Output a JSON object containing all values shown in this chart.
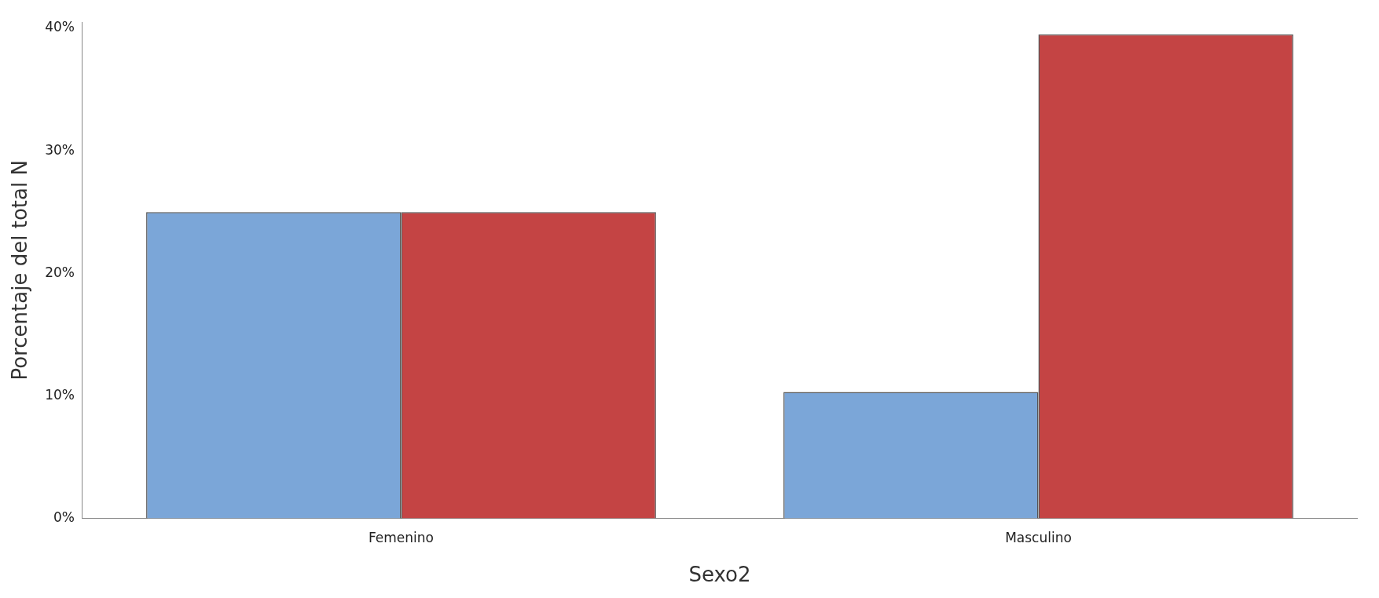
{
  "chart_data": {
    "type": "bar",
    "xlabel": "Sexo2",
    "ylabel": "Porcentaje del total N",
    "categories": [
      "Femenino",
      "Masculino"
    ],
    "series": [
      {
        "color": "#7ba6d8",
        "values": [
          25,
          10.3
        ]
      },
      {
        "color": "#c44444",
        "values": [
          25,
          39.5
        ]
      }
    ],
    "ylim": [
      0,
      40.5
    ],
    "yticks": [
      {
        "value": 0,
        "label": "0%"
      },
      {
        "value": 10,
        "label": "10%"
      },
      {
        "value": 20,
        "label": "20%"
      },
      {
        "value": 30,
        "label": "30%"
      },
      {
        "value": 40,
        "label": "40%"
      }
    ],
    "grid": false,
    "legend": false
  }
}
